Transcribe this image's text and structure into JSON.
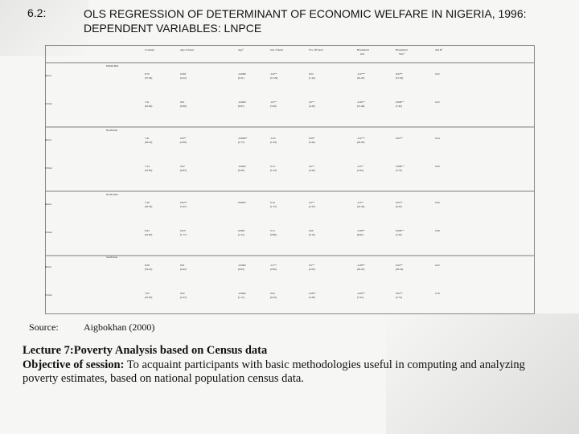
{
  "slide": {
    "number": "6.2:",
    "title": "OLS REGRESSION OF DETERMINANT OF ECONOMIC WELFARE IN NIGERIA, 1996: DEPENDENT VARIABLES: LNPCE"
  },
  "table": {
    "headers": [
      "Constant",
      "Age of head",
      "Age²",
      "Sex of head",
      "Yrs. Of head",
      "Household size",
      "Household Size²",
      "Adj R²"
    ],
    "groups": [
      {
        "label": "Middle Belt",
        "rows": [
          {
            "label": "Rural",
            "cells": [
              [
                "8.70",
                "(37.46)"
              ],
              [
                "0.002",
                "(0.22)"
              ],
              [
                "-0.0000",
                "(0.21)"
              ],
              [
                "-0.4**",
                "(15.29)"
              ],
              [
                "0.02",
                "(1.44)"
              ],
              [
                "-0.27**",
                "(22.20)"
              ],
              [
                "0.02**",
                "(15.26)"
              ],
              [
                "0.22",
                ""
              ]
            ]
          },
          {
            "label": "Urban",
            "cells": [
              [
                "7.41",
                "(23.40)"
              ],
              [
                "0.01",
                "(0.99)"
              ],
              [
                "-0.0002",
                "(0.97)"
              ],
              [
                "-0.2**",
                "(3.20)"
              ],
              [
                "0.2**",
                "(4.32)"
              ],
              [
                "-0.26**",
                "(12.49)"
              ],
              [
                "0.006**",
                "(7.42)"
              ],
              [
                "0.22",
                ""
              ]
            ]
          }
        ]
      },
      {
        "label": "North-East",
        "rows": [
          {
            "label": "Rural",
            "cells": [
              [
                "7.41",
                "(40.43)"
              ],
              [
                "0.02*",
                "(3.69)"
              ],
              [
                "-0.0002*",
                "(2.73)"
              ],
              [
                "-0.12",
                "(1.64)"
              ],
              [
                "0.09*",
                "(3.42)"
              ],
              [
                "-0.27**",
                "(26.20)"
              ],
              [
                "0.02**",
                ""
              ],
              [
                "0.24",
                ""
              ]
            ]
          },
          {
            "label": "Urban",
            "cells": [
              [
                "7.34",
                "(23.99)"
              ],
              [
                "0.02",
                "(0.83)"
              ],
              [
                "-0.0002",
                "(0.49)"
              ],
              [
                "0.14",
                "(1.24)"
              ],
              [
                "0.2**",
                "(4.44)"
              ],
              [
                "-0.2**",
                "(4.44)"
              ],
              [
                "0.009**",
                "(3.76)"
              ],
              [
                "0.20",
                ""
              ]
            ]
          }
        ]
      },
      {
        "label": "North-West",
        "rows": [
          {
            "label": "Rural",
            "cells": [
              [
                "7.40",
                "(43.39)"
              ],
              [
                "0.02**",
                "(3.45)"
              ],
              [
                "0.0002*",
                ""
              ],
              [
                "0.14",
                "(1.33)"
              ],
              [
                "0.2**",
                "(4.33)"
              ],
              [
                "-0.2**",
                "(24.49)"
              ],
              [
                "0.02**",
                "(9.43)"
              ],
              [
                "0.26",
                ""
              ]
            ]
          },
          {
            "label": "Urban",
            "cells": [
              [
                "8.43",
                "(23.00)"
              ],
              [
                "0.03*",
                "(1.77)"
              ],
              [
                "0.0001",
                "(1.43)"
              ],
              [
                "0.13",
                "(0.88)"
              ],
              [
                "0.06",
                "(0.10)"
              ],
              [
                "-0.28**",
                "(8.82)"
              ],
              [
                "0.006**",
                "(3.26)"
              ],
              [
                "0.28",
                ""
              ]
            ]
          }
        ]
      },
      {
        "label": "South-East",
        "rows": [
          {
            "label": "Rural",
            "cells": [
              [
                "8.28",
                "(34.23)"
              ],
              [
                "0.01",
                "(0.42)"
              ],
              [
                "-0.0002",
                "(0.93)"
              ],
              [
                "-0.1**",
                "(2.90)"
              ],
              [
                "0.2**",
                "(4.50)"
              ],
              [
                "-0.28**",
                "(26.23)"
              ],
              [
                "0.02**",
                "(20.24)"
              ],
              [
                "0.22",
                ""
              ]
            ]
          },
          {
            "label": "Urban",
            "cells": [
              [
                "7.93",
                "(22.29)"
              ],
              [
                "0.02",
                "(1.63)"
              ],
              [
                "-0.0002",
                "(1.12)"
              ],
              [
                "0.04",
                "(0.24)"
              ],
              [
                "0.28**",
                "(3.40)"
              ],
              [
                "-0.09**",
                "(7.44)"
              ],
              [
                "0.02**",
                "(4.74)"
              ],
              [
                "0.19",
                ""
              ]
            ]
          }
        ]
      }
    ]
  },
  "source": {
    "label": "Source:",
    "value": "Aigbokhan (2000)"
  },
  "lecture": {
    "title": "Lecture 7:Poverty Analysis based on Census data",
    "objective_label": "Objective of session:",
    "objective_text": " To acquaint participants with basic methodologies useful in computing and analyzing poverty estimates, based on national population census data."
  }
}
